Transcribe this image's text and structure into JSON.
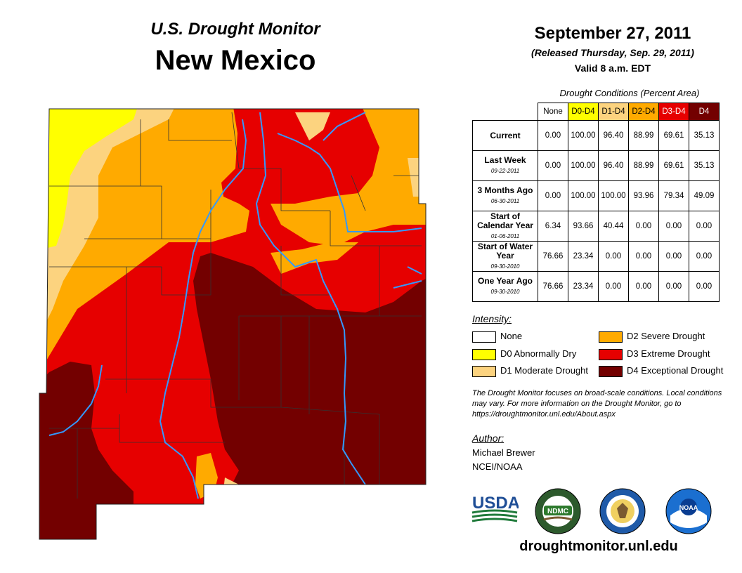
{
  "header": {
    "title": "U.S. Drought Monitor",
    "state": "New Mexico",
    "date": "September 27, 2011",
    "released": "(Released Thursday, Sep. 29, 2011)",
    "valid": "Valid 8 a.m. EDT"
  },
  "table": {
    "caption": "Drought Conditions (Percent Area)",
    "columns": [
      "None",
      "D0-D4",
      "D1-D4",
      "D2-D4",
      "D3-D4",
      "D4"
    ],
    "column_colors": [
      "#ffffff",
      "#ffff00",
      "#fcd37f",
      "#ffaa00",
      "#e60000",
      "#730000"
    ],
    "rows": [
      {
        "label": "Current",
        "sublabel": "",
        "values": [
          "0.00",
          "100.00",
          "96.40",
          "88.99",
          "69.61",
          "35.13"
        ]
      },
      {
        "label": "Last Week",
        "sublabel": "09-22-2011",
        "values": [
          "0.00",
          "100.00",
          "96.40",
          "88.99",
          "69.61",
          "35.13"
        ]
      },
      {
        "label": "3 Months Ago",
        "sublabel": "06-30-2011",
        "values": [
          "0.00",
          "100.00",
          "100.00",
          "93.96",
          "79.34",
          "49.09"
        ]
      },
      {
        "label": "Start of Calendar Year",
        "sublabel": "01-06-2011",
        "values": [
          "6.34",
          "93.66",
          "40.44",
          "0.00",
          "0.00",
          "0.00"
        ]
      },
      {
        "label": "Start of Water Year",
        "sublabel": "09-30-2010",
        "values": [
          "76.66",
          "23.34",
          "0.00",
          "0.00",
          "0.00",
          "0.00"
        ]
      },
      {
        "label": "One Year Ago",
        "sublabel": "09-30-2010",
        "values": [
          "76.66",
          "23.34",
          "0.00",
          "0.00",
          "0.00",
          "0.00"
        ]
      }
    ]
  },
  "legend": {
    "title": "Intensity:",
    "items": [
      {
        "label": "None",
        "color": "#ffffff"
      },
      {
        "label": "D0 Abnormally Dry",
        "color": "#ffff00"
      },
      {
        "label": "D1 Moderate Drought",
        "color": "#fcd37f"
      },
      {
        "label": "D2 Severe Drought",
        "color": "#ffaa00"
      },
      {
        "label": "D3 Extreme Drought",
        "color": "#e60000"
      },
      {
        "label": "D4 Exceptional Drought",
        "color": "#730000"
      }
    ]
  },
  "note": "The Drought Monitor focuses on broad-scale conditions. Local conditions may vary. For more information on the Drought Monitor, go to https://droughtmonitor.unl.edu/About.aspx",
  "author": {
    "title": "Author:",
    "name": "Michael Brewer",
    "org": "NCEI/NOAA"
  },
  "logos": {
    "usda": "USDA",
    "ndmc": "NDMC",
    "noaa": "NOAA"
  },
  "footer": {
    "url": "droughtmonitor.unl.edu"
  },
  "map_colors": {
    "d0": "#ffff00",
    "d1": "#fcd37f",
    "d2": "#ffaa00",
    "d3": "#e60000",
    "d4": "#730000",
    "river": "#3399ff"
  }
}
